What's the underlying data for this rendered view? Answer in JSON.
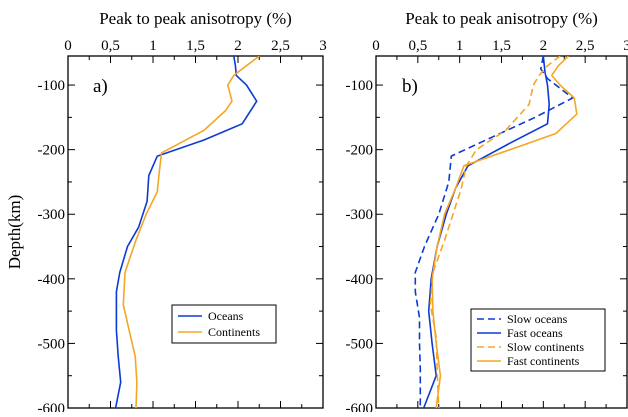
{
  "chart_data": [
    {
      "type": "line",
      "panel_label": "a)",
      "title": "Peak to peak anisotropy (%)",
      "ylabel": "Depth(km)",
      "xlim": [
        0,
        3
      ],
      "ylim": [
        -600,
        -55
      ],
      "x_ticks": [
        "0",
        "0,5",
        "1",
        "1,5",
        "2",
        "2,5",
        "3"
      ],
      "y_ticks": [
        "-100",
        "-200",
        "-300",
        "-400",
        "-500",
        "-600"
      ],
      "grid": false,
      "legend_position": "lower-right",
      "series": [
        {
          "name": "Oceans",
          "color": "#0b3bd4",
          "dash": "solid",
          "points": [
            [
              1.95,
              -55
            ],
            [
              1.97,
              -70
            ],
            [
              1.98,
              -85
            ],
            [
              2.1,
              -100
            ],
            [
              2.22,
              -125
            ],
            [
              2.05,
              -160
            ],
            [
              1.6,
              -185
            ],
            [
              1.05,
              -210
            ],
            [
              0.95,
              -240
            ],
            [
              0.93,
              -280
            ],
            [
              0.83,
              -320
            ],
            [
              0.7,
              -350
            ],
            [
              0.61,
              -390
            ],
            [
              0.57,
              -420
            ],
            [
              0.57,
              -450
            ],
            [
              0.57,
              -480
            ],
            [
              0.59,
              -520
            ],
            [
              0.62,
              -560
            ],
            [
              0.56,
              -600
            ]
          ]
        },
        {
          "name": "Continents",
          "color": "#f5a623",
          "dash": "solid",
          "points": [
            [
              2.25,
              -55
            ],
            [
              2.1,
              -70
            ],
            [
              1.95,
              -85
            ],
            [
              1.88,
              -100
            ],
            [
              1.93,
              -125
            ],
            [
              1.85,
              -140
            ],
            [
              1.6,
              -170
            ],
            [
              1.1,
              -205
            ],
            [
              1.07,
              -240
            ],
            [
              1.05,
              -265
            ],
            [
              0.92,
              -300
            ],
            [
              0.8,
              -340
            ],
            [
              0.67,
              -390
            ],
            [
              0.65,
              -440
            ],
            [
              0.72,
              -480
            ],
            [
              0.79,
              -520
            ],
            [
              0.81,
              -560
            ],
            [
              0.8,
              -600
            ]
          ]
        }
      ]
    },
    {
      "type": "line",
      "panel_label": "b)",
      "title": "Peak to peak anisotropy (%)",
      "ylabel": "",
      "xlim": [
        0,
        3
      ],
      "ylim": [
        -600,
        -55
      ],
      "x_ticks": [
        "0",
        "0,5",
        "1",
        "1,5",
        "2",
        "2,5",
        "3"
      ],
      "y_ticks": [
        "-100",
        "-200",
        "-300",
        "-400",
        "-500",
        "-600"
      ],
      "grid": false,
      "legend_position": "lower-right",
      "series": [
        {
          "name": "Slow oceans",
          "color": "#0b3bd4",
          "dash": "dashed",
          "points": [
            [
              2,
              -55
            ],
            [
              1.97,
              -75
            ],
            [
              2.05,
              -90
            ],
            [
              2.35,
              -120
            ],
            [
              1.9,
              -150
            ],
            [
              1.4,
              -180
            ],
            [
              0.9,
              -210
            ],
            [
              0.87,
              -250
            ],
            [
              0.75,
              -300
            ],
            [
              0.58,
              -350
            ],
            [
              0.47,
              -390
            ],
            [
              0.47,
              -420
            ],
            [
              0.52,
              -460
            ],
            [
              0.52,
              -500
            ],
            [
              0.53,
              -540
            ],
            [
              0.53,
              -600
            ]
          ]
        },
        {
          "name": "Fast oceans",
          "color": "#0b3bd4",
          "dash": "solid",
          "points": [
            [
              2,
              -55
            ],
            [
              2.02,
              -80
            ],
            [
              2.05,
              -100
            ],
            [
              2.07,
              -130
            ],
            [
              2.05,
              -160
            ],
            [
              1.6,
              -190
            ],
            [
              1.1,
              -225
            ],
            [
              0.95,
              -260
            ],
            [
              0.84,
              -300
            ],
            [
              0.73,
              -350
            ],
            [
              0.66,
              -400
            ],
            [
              0.63,
              -450
            ],
            [
              0.67,
              -500
            ],
            [
              0.72,
              -550
            ],
            [
              0.57,
              -600
            ]
          ]
        },
        {
          "name": "Slow continents",
          "color": "#f5a623",
          "dash": "dashed",
          "points": [
            [
              2.2,
              -55
            ],
            [
              2.05,
              -70
            ],
            [
              1.95,
              -85
            ],
            [
              1.88,
              -100
            ],
            [
              1.83,
              -130
            ],
            [
              1.55,
              -170
            ],
            [
              1.2,
              -200
            ],
            [
              1.08,
              -225
            ],
            [
              1.02,
              -260
            ],
            [
              0.92,
              -300
            ],
            [
              0.82,
              -340
            ],
            [
              0.68,
              -390
            ],
            [
              0.65,
              -440
            ],
            [
              0.72,
              -490
            ],
            [
              0.73,
              -540
            ],
            [
              0.75,
              -600
            ]
          ]
        },
        {
          "name": "Fast continents",
          "color": "#f5a623",
          "dash": "solid",
          "points": [
            [
              2.3,
              -55
            ],
            [
              2.18,
              -70
            ],
            [
              2.1,
              -85
            ],
            [
              2.2,
              -100
            ],
            [
              2.37,
              -120
            ],
            [
              2.4,
              -145
            ],
            [
              2.15,
              -175
            ],
            [
              1.6,
              -200
            ],
            [
              1.05,
              -225
            ],
            [
              0.95,
              -260
            ],
            [
              0.82,
              -300
            ],
            [
              0.73,
              -350
            ],
            [
              0.67,
              -400
            ],
            [
              0.68,
              -450
            ],
            [
              0.72,
              -500
            ],
            [
              0.77,
              -550
            ],
            [
              0.72,
              -600
            ]
          ]
        }
      ]
    }
  ]
}
